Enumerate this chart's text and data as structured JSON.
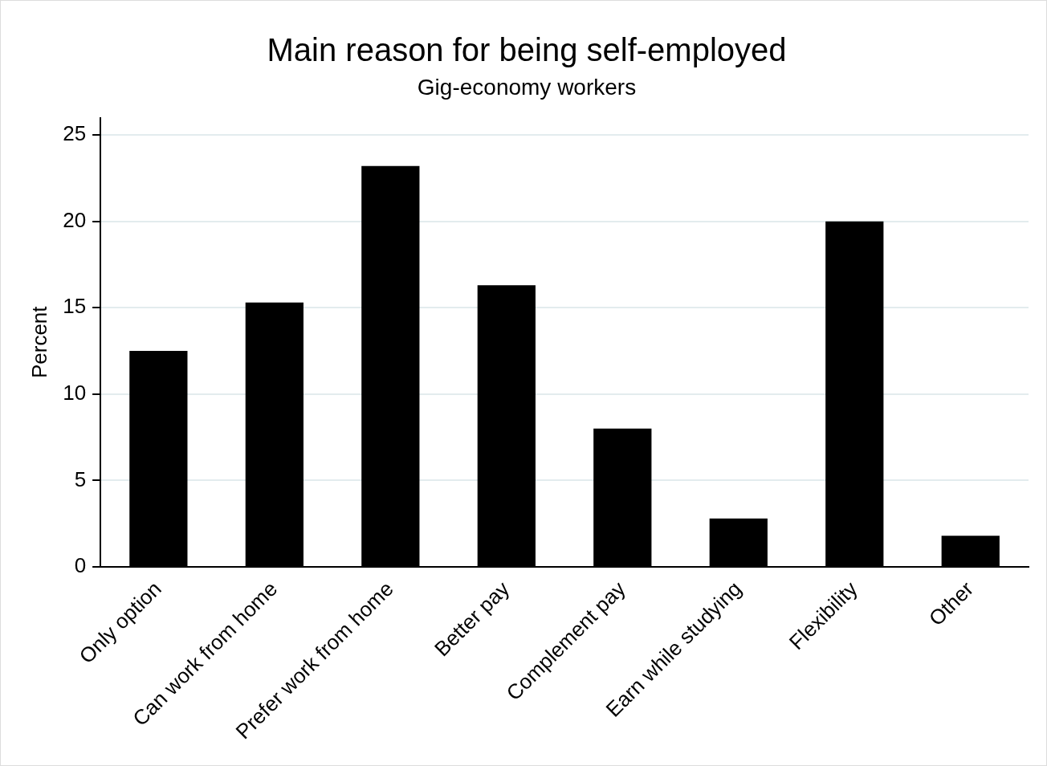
{
  "chart_data": {
    "type": "bar",
    "title": "Main reason for being self-employed",
    "subtitle": "Gig-economy workers",
    "ylabel": "Percent",
    "categories": [
      "Only option",
      "Can work from home",
      "Prefer work from home",
      "Better pay",
      "Complement pay",
      "Earn while studying",
      "Flexibility",
      "Other"
    ],
    "values": [
      12.5,
      15.3,
      23.2,
      16.3,
      8.0,
      2.8,
      20.0,
      1.8
    ],
    "color": "#000000",
    "ylim": [
      0,
      26
    ],
    "yticks": [
      0,
      5,
      10,
      15,
      20,
      25
    ],
    "grid": "y",
    "legend": false
  }
}
